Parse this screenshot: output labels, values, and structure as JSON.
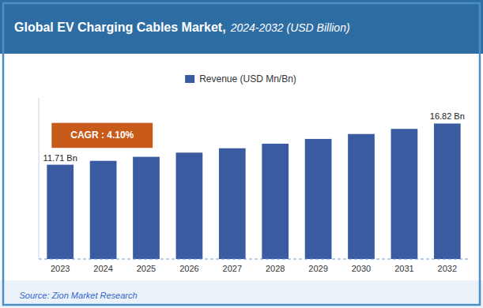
{
  "chart_data": {
    "type": "bar",
    "title": "Global EV Charging Cables Market,",
    "subtitle": "2024-2032 (USD Billion)",
    "categories": [
      "2023",
      "2024",
      "2025",
      "2026",
      "2027",
      "2028",
      "2029",
      "2030",
      "2031",
      "2032"
    ],
    "series": [
      {
        "name": "Revenue (USD Mn/Bn)",
        "color": "#3A5BA0",
        "values": [
          11.71,
          12.19,
          12.69,
          13.21,
          13.75,
          14.32,
          14.91,
          15.52,
          16.16,
          16.82
        ],
        "value_labels": [
          "11.71 Bn",
          null,
          null,
          null,
          null,
          null,
          null,
          null,
          null,
          "16.82 Bn"
        ]
      }
    ],
    "annotations": [
      "CAGR : 4.10%",
      "Source: Zion Market Research"
    ],
    "ylim": [
      0,
      20
    ],
    "grid": false,
    "legend": "top",
    "tick_labels": "x"
  }
}
